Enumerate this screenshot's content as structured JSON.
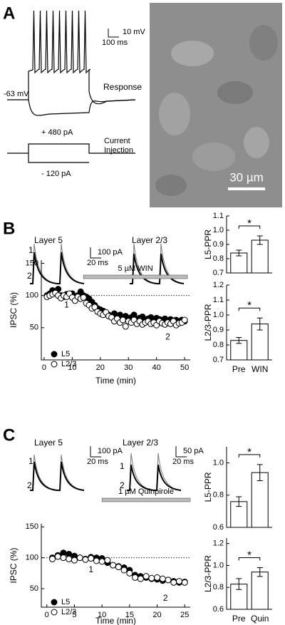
{
  "panel_labels": [
    "A",
    "B",
    "C"
  ],
  "panel_a": {
    "scale_bar": {
      "v": "10 mV",
      "t": "100 ms"
    },
    "resting": "-63 mV",
    "response": "Response",
    "injection_plus": "+ 480 pA",
    "injection_minus": "- 120 pA",
    "injection_label": [
      "Current",
      "Injection"
    ],
    "image_scale": "30 µm"
  },
  "panel_b_traces": {
    "left_title": "Layer 5",
    "right_title": "Layer 2/3",
    "scale_bar": {
      "i": "100 pA",
      "t": "20 ms"
    },
    "trace_labels": [
      "1",
      "2"
    ]
  },
  "panel_c_traces": {
    "left_title": "Layer 5",
    "right_title": "Layer 2/3",
    "scale_bars": [
      {
        "i": "100 pA",
        "t": "20 ms"
      },
      {
        "i": "50 pA",
        "t": "20 ms"
      }
    ],
    "trace_labels": [
      "1",
      "2",
      "1",
      "2"
    ]
  },
  "chart_data": [
    {
      "type": "scatter",
      "xlabel": "Time (min)",
      "ylabel": "IPSC (%)",
      "xlim": [
        -1,
        52
      ],
      "ylim": [
        0,
        155
      ],
      "xticks": [
        0,
        10,
        20,
        30,
        40,
        50
      ],
      "yticks": [
        50,
        100,
        150
      ],
      "reference_line": 100,
      "legend": "lower left",
      "drug": {
        "label": "5 µM WIN",
        "start": 14,
        "end": 51
      },
      "annotations": [
        {
          "text": "1",
          "x": 8,
          "y": 85
        },
        {
          "text": "2",
          "x": 44,
          "y": 35
        }
      ],
      "x": [
        1,
        2,
        3,
        4,
        5,
        6,
        7,
        8,
        9,
        10,
        11,
        12,
        13,
        14,
        15,
        16,
        17,
        18,
        19,
        20,
        21,
        22,
        23,
        24,
        25,
        26,
        27,
        28,
        29,
        30,
        31,
        32,
        33,
        34,
        35,
        36,
        37,
        38,
        39,
        40,
        41,
        42,
        43,
        44,
        45,
        46,
        47,
        48,
        49,
        50
      ],
      "series": [
        {
          "name": "L5",
          "color": "#000000",
          "values": [
            100,
            103,
            108,
            105,
            110,
            100,
            98,
            102,
            100,
            103,
            95,
            100,
            106,
            100,
            98,
            95,
            90,
            85,
            80,
            78,
            76,
            72,
            70,
            68,
            72,
            66,
            70,
            65,
            68,
            64,
            66,
            70,
            63,
            65,
            67,
            62,
            64,
            66,
            60,
            65,
            63,
            62,
            64,
            60,
            63,
            61,
            62,
            58,
            62,
            60
          ]
        },
        {
          "name": "L2/3",
          "color": "#ffffff",
          "values": [
            98,
            100,
            102,
            104,
            100,
            96,
            100,
            98,
            103,
            97,
            92,
            98,
            95,
            97,
            88,
            85,
            80,
            82,
            75,
            72,
            70,
            74,
            68,
            66,
            60,
            64,
            58,
            62,
            52,
            60,
            58,
            62,
            56,
            60,
            55,
            58,
            60,
            56,
            58,
            54,
            60,
            57,
            55,
            58,
            56,
            60,
            54,
            57,
            58,
            62
          ]
        }
      ]
    },
    {
      "type": "bar",
      "ylabel": "L5-PPR",
      "categories": [
        null,
        null
      ],
      "values": [
        0.84,
        0.93
      ],
      "errors": [
        0.02,
        0.03
      ],
      "ylim": [
        0.7,
        1.1
      ],
      "yticks": [
        0.7,
        0.8,
        0.9,
        {
          "value": 1,
          "label": "1.0"
        },
        1.1
      ],
      "significance": "*",
      "color": "#ffffff"
    },
    {
      "type": "bar",
      "ylabel": "L2/3-PPR",
      "categories": [
        "Pre",
        "WIN"
      ],
      "values": [
        0.83,
        0.94
      ],
      "errors": [
        0.02,
        0.04
      ],
      "ylim": [
        0.7,
        1.2
      ],
      "yticks": [
        0.7,
        0.8,
        0.9,
        {
          "value": 1,
          "label": "1.0"
        },
        1.1,
        1.2
      ],
      "significance": "*",
      "color": "#ffffff"
    },
    {
      "type": "scatter",
      "xlabel": "Time (min)",
      "ylabel": "IPSC (%)",
      "xlim": [
        -1,
        26
      ],
      "ylim": [
        20,
        155
      ],
      "xticks": [
        0,
        5,
        10,
        15,
        20,
        25
      ],
      "yticks": [
        50,
        100,
        150
      ],
      "reference_line": 100,
      "legend": "lower left",
      "drug": {
        "label": "1 µM Quinpirole",
        "start": 10,
        "end": 26
      },
      "annotations": [
        {
          "text": "1",
          "x": 8,
          "y": 80
        },
        {
          "text": "2",
          "x": 21.5,
          "y": 34
        }
      ],
      "x": [
        1,
        2,
        3,
        4,
        5,
        6,
        7,
        8,
        9,
        10,
        11,
        12,
        13,
        14,
        15,
        16,
        17,
        18,
        19,
        20,
        21,
        22,
        23,
        24,
        25
      ],
      "series": [
        {
          "name": "L5",
          "color": "#000000",
          "values": [
            100,
            104,
            108,
            106,
            103,
            100,
            98,
            101,
            100,
            99,
            92,
            88,
            86,
            84,
            80,
            72,
            70,
            68,
            66,
            65,
            63,
            64,
            62,
            60,
            61
          ]
        },
        {
          "name": "L2/3",
          "color": "#ffffff",
          "values": [
            98,
            102,
            100,
            98,
            96,
            100,
            97,
            99,
            95,
            94,
            96,
            88,
            85,
            80,
            75,
            68,
            66,
            70,
            67,
            68,
            66,
            64,
            60,
            62,
            60
          ]
        }
      ]
    },
    {
      "type": "bar",
      "ylabel": "L5-PPR",
      "categories": [
        null,
        null
      ],
      "values": [
        0.76,
        0.94
      ],
      "errors": [
        0.03,
        0.05
      ],
      "ylim": [
        0.6,
        1.1
      ],
      "yticks": [
        0.6,
        0.8,
        {
          "value": 1,
          "label": "1.0"
        }
      ],
      "significance": "*",
      "color": "#ffffff"
    },
    {
      "type": "bar",
      "ylabel": "L2/3-PPR",
      "categories": [
        "Pre",
        "Quin"
      ],
      "values": [
        0.83,
        0.94
      ],
      "errors": [
        0.05,
        0.04
      ],
      "ylim": [
        0.6,
        1.25
      ],
      "yticks": [
        0.6,
        0.8,
        {
          "value": 1,
          "label": "1.0"
        },
        1.2
      ],
      "significance": "*",
      "color": "#ffffff"
    }
  ]
}
